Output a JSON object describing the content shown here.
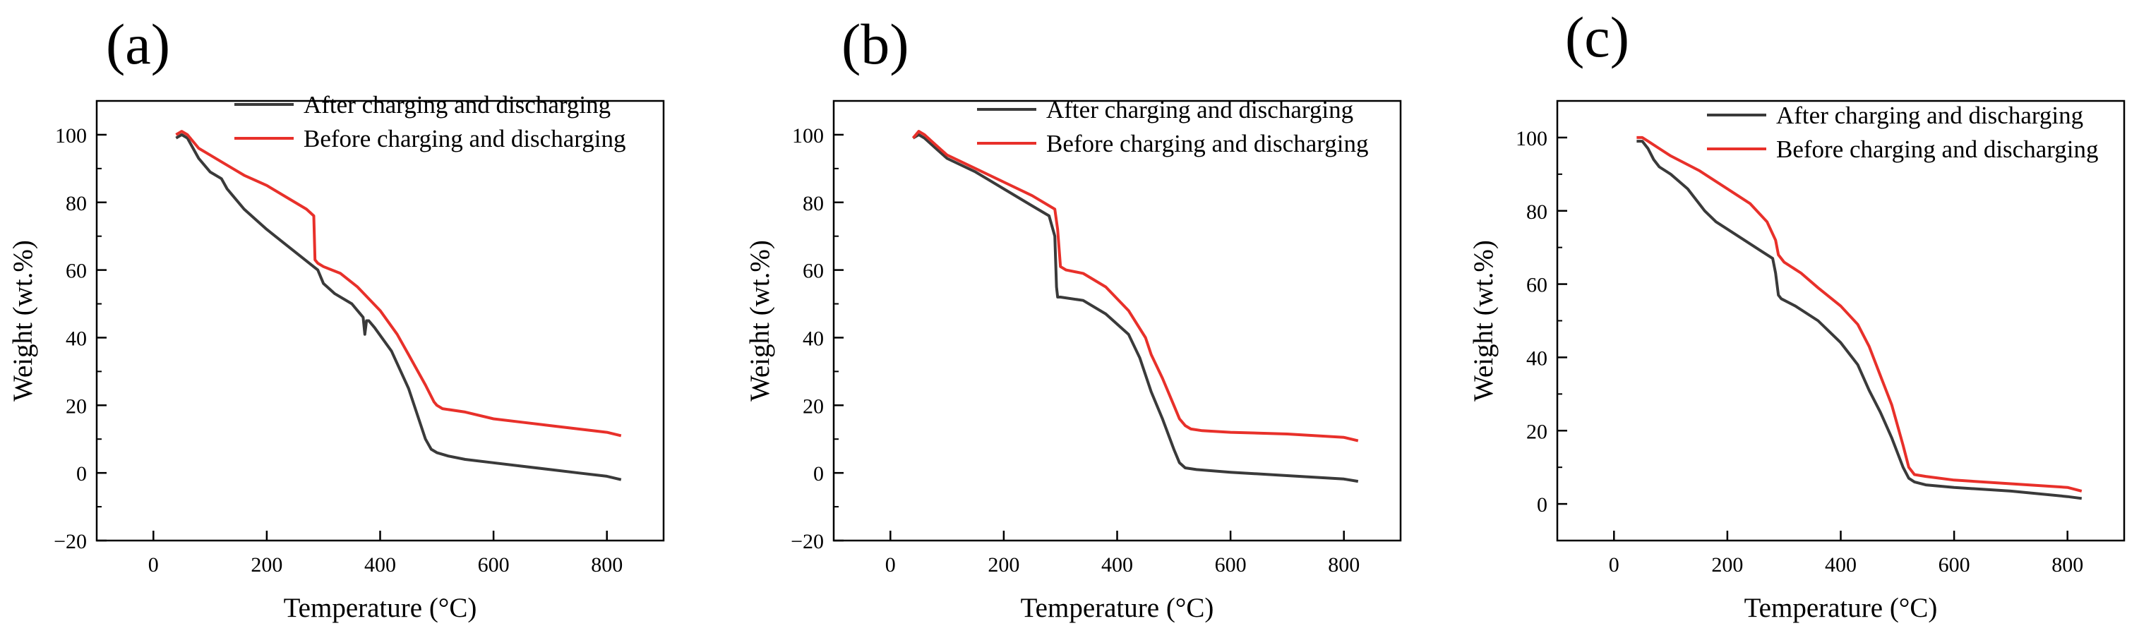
{
  "chart_data": [
    {
      "type": "line",
      "panel_label": "(a)",
      "xlabel": "Temperature (°C)",
      "ylabel": "Weight (wt.%)",
      "xlim": [
        -100,
        900
      ],
      "ylim": [
        -20,
        110
      ],
      "x_ticks": [
        0,
        200,
        400,
        600,
        800
      ],
      "x_tick_labels": [
        "0",
        "200",
        "400",
        "600",
        "800"
      ],
      "y_ticks": [
        -20,
        0,
        20,
        40,
        60,
        80,
        100
      ],
      "y_tick_labels": [
        "−20",
        "0",
        "20",
        "40",
        "60",
        "80",
        "100"
      ],
      "grid": false,
      "legend_position": "top-right",
      "series": [
        {
          "name": "After charging and discharging",
          "color": "#3a3a3a",
          "x": [
            40,
            50,
            60,
            70,
            80,
            100,
            120,
            130,
            140,
            160,
            180,
            200,
            230,
            260,
            290,
            300,
            320,
            350,
            370,
            373,
            376,
            380,
            390,
            420,
            450,
            470,
            480,
            490,
            500,
            520,
            550,
            600,
            650,
            700,
            750,
            800,
            825
          ],
          "y": [
            99,
            100,
            99,
            96,
            93,
            89,
            87,
            84,
            82,
            78,
            75,
            72,
            68,
            64,
            60,
            56,
            53,
            50,
            46,
            41,
            45,
            45,
            43,
            36,
            25,
            15,
            10,
            7,
            6,
            5,
            4,
            3,
            2,
            1,
            0,
            -1,
            -2
          ]
        },
        {
          "name": "Before charging and discharging",
          "color": "#e8302a",
          "x": [
            40,
            50,
            60,
            70,
            80,
            100,
            120,
            140,
            160,
            200,
            240,
            270,
            283,
            285,
            290,
            300,
            330,
            360,
            400,
            430,
            450,
            480,
            495,
            500,
            510,
            550,
            600,
            650,
            700,
            750,
            800,
            825
          ],
          "y": [
            100,
            101,
            100,
            98,
            96,
            94,
            92,
            90,
            88,
            85,
            81,
            78,
            76,
            63,
            62,
            61,
            59,
            55,
            48,
            41,
            35,
            26,
            21,
            20,
            19,
            18,
            16,
            15,
            14,
            13,
            12,
            11
          ]
        }
      ]
    },
    {
      "type": "line",
      "panel_label": "(b)",
      "xlabel": "Temperature (°C)",
      "ylabel": "Weight (wt.%)",
      "xlim": [
        -100,
        900
      ],
      "ylim": [
        -20,
        110
      ],
      "x_ticks": [
        0,
        200,
        400,
        600,
        800
      ],
      "x_tick_labels": [
        "0",
        "200",
        "400",
        "600",
        "800"
      ],
      "y_ticks": [
        -20,
        0,
        20,
        40,
        60,
        80,
        100
      ],
      "y_tick_labels": [
        "−20",
        "0",
        "20",
        "40",
        "60",
        "80",
        "100"
      ],
      "grid": false,
      "legend_position": "top-right",
      "series": [
        {
          "name": "After charging and discharging",
          "color": "#3a3a3a",
          "x": [
            40,
            50,
            60,
            80,
            100,
            150,
            200,
            250,
            280,
            290,
            293,
            295,
            300,
            340,
            380,
            420,
            440,
            460,
            480,
            500,
            510,
            520,
            540,
            600,
            700,
            800,
            825
          ],
          "y": [
            99,
            100,
            99,
            96,
            93,
            89,
            84,
            79,
            76,
            70,
            55,
            52,
            52,
            51,
            47,
            41,
            34,
            24,
            16,
            7,
            3,
            1.5,
            1,
            0.2,
            -0.8,
            -1.8,
            -2.5
          ]
        },
        {
          "name": "Before charging and discharging",
          "color": "#e8302a",
          "x": [
            40,
            50,
            60,
            80,
            100,
            150,
            200,
            250,
            290,
            295,
            300,
            310,
            340,
            380,
            420,
            450,
            460,
            480,
            500,
            510,
            520,
            530,
            550,
            600,
            700,
            800,
            825
          ],
          "y": [
            99,
            101,
            100,
            97,
            94,
            90,
            86,
            82,
            78,
            72,
            61,
            60,
            59,
            55,
            48,
            40,
            35,
            28,
            20,
            16,
            14,
            13,
            12.5,
            12,
            11.5,
            10.5,
            9.5
          ]
        }
      ]
    },
    {
      "type": "line",
      "panel_label": "(c)",
      "xlabel": "Temperature (°C)",
      "ylabel": "Weight (wt.%)",
      "xlim": [
        -100,
        900
      ],
      "ylim": [
        -10,
        110
      ],
      "x_ticks": [
        0,
        200,
        400,
        600,
        800
      ],
      "x_tick_labels": [
        "0",
        "200",
        "400",
        "600",
        "800"
      ],
      "y_ticks": [
        0,
        20,
        40,
        60,
        80,
        100
      ],
      "y_tick_labels": [
        "0",
        "20",
        "40",
        "60",
        "80",
        "100"
      ],
      "grid": false,
      "legend_position": "top-right",
      "series": [
        {
          "name": "After charging and discharging",
          "color": "#3a3a3a",
          "x": [
            40,
            50,
            60,
            70,
            80,
            100,
            130,
            160,
            180,
            200,
            230,
            260,
            280,
            285,
            290,
            295,
            320,
            360,
            400,
            430,
            450,
            470,
            490,
            510,
            520,
            530,
            550,
            600,
            700,
            800,
            825
          ],
          "y": [
            99,
            99,
            97,
            94,
            92,
            90,
            86,
            80,
            77,
            75,
            72,
            69,
            67,
            63,
            57,
            56,
            54,
            50,
            44,
            38,
            31,
            25,
            18,
            10,
            7,
            6,
            5.2,
            4.5,
            3.5,
            2,
            1.5
          ]
        },
        {
          "name": "Before charging and discharging",
          "color": "#e8302a",
          "x": [
            40,
            50,
            60,
            80,
            100,
            150,
            200,
            240,
            270,
            285,
            290,
            300,
            330,
            360,
            400,
            430,
            450,
            470,
            490,
            510,
            520,
            530,
            550,
            600,
            700,
            800,
            825
          ],
          "y": [
            100,
            100,
            99,
            97,
            95,
            91,
            86,
            82,
            77,
            72,
            68,
            66,
            63,
            59,
            54,
            49,
            43,
            35,
            27,
            16,
            10,
            8,
            7.5,
            6.5,
            5.5,
            4.5,
            3.5
          ]
        }
      ]
    }
  ]
}
